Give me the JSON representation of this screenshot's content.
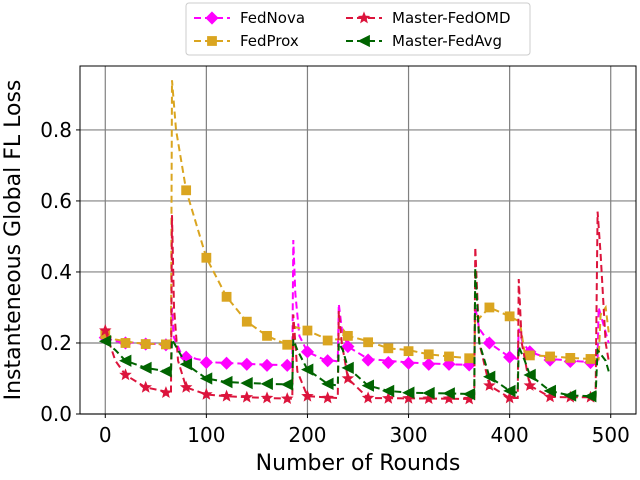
{
  "chart_data": {
    "type": "line",
    "title": "",
    "xlabel": "Number of Rounds",
    "ylabel": "Instanteneous Global FL Loss",
    "xlim": [
      -25,
      525
    ],
    "ylim": [
      0.0,
      0.98
    ],
    "xticks": [
      0,
      100,
      200,
      300,
      400,
      500
    ],
    "yticks": [
      0.0,
      0.2,
      0.4,
      0.6,
      0.8
    ],
    "xtick_labels": [
      "0",
      "100",
      "200",
      "300",
      "400",
      "500"
    ],
    "ytick_labels": [
      "0.0",
      "0.2",
      "0.4",
      "0.6",
      "0.8"
    ],
    "grid": true,
    "legend": {
      "placement": "top-center-outside",
      "columns": 2
    },
    "series": [
      {
        "name": "FedNova",
        "color": "#ff00ff",
        "marker": "diamond",
        "line": [
          [
            0,
            0.215
          ],
          [
            10,
            0.205
          ],
          [
            30,
            0.2
          ],
          [
            50,
            0.197
          ],
          [
            65,
            0.195
          ],
          [
            66,
            0.3
          ],
          [
            68,
            0.215
          ],
          [
            75,
            0.17
          ],
          [
            90,
            0.155
          ],
          [
            110,
            0.145
          ],
          [
            150,
            0.14
          ],
          [
            185,
            0.137
          ],
          [
            186,
            0.49
          ],
          [
            188,
            0.34
          ],
          [
            192,
            0.22
          ],
          [
            200,
            0.175
          ],
          [
            215,
            0.155
          ],
          [
            230,
            0.148
          ],
          [
            231,
            0.31
          ],
          [
            234,
            0.24
          ],
          [
            240,
            0.19
          ],
          [
            260,
            0.155
          ],
          [
            300,
            0.145
          ],
          [
            340,
            0.14
          ],
          [
            365,
            0.138
          ],
          [
            366,
            0.3
          ],
          [
            370,
            0.24
          ],
          [
            380,
            0.2
          ],
          [
            400,
            0.16
          ],
          [
            408,
            0.155
          ],
          [
            409,
            0.24
          ],
          [
            413,
            0.2
          ],
          [
            420,
            0.175
          ],
          [
            440,
            0.155
          ],
          [
            470,
            0.148
          ],
          [
            487,
            0.145
          ],
          [
            488,
            0.3
          ],
          [
            495,
            0.23
          ],
          [
            498,
            0.2
          ]
        ],
        "markers": [
          [
            0,
            0.215
          ],
          [
            20,
            0.2
          ],
          [
            40,
            0.197
          ],
          [
            60,
            0.195
          ],
          [
            80,
            0.16
          ],
          [
            100,
            0.145
          ],
          [
            120,
            0.143
          ],
          [
            140,
            0.14
          ],
          [
            160,
            0.137
          ],
          [
            180,
            0.137
          ],
          [
            200,
            0.175
          ],
          [
            220,
            0.15
          ],
          [
            240,
            0.19
          ],
          [
            260,
            0.152
          ],
          [
            280,
            0.145
          ],
          [
            300,
            0.143
          ],
          [
            320,
            0.14
          ],
          [
            340,
            0.14
          ],
          [
            360,
            0.138
          ],
          [
            380,
            0.2
          ],
          [
            400,
            0.16
          ],
          [
            420,
            0.175
          ],
          [
            440,
            0.152
          ],
          [
            460,
            0.148
          ],
          [
            480,
            0.145
          ]
        ]
      },
      {
        "name": "FedProx",
        "color": "#daa520",
        "marker": "square",
        "line": [
          [
            0,
            0.225
          ],
          [
            10,
            0.21
          ],
          [
            30,
            0.2
          ],
          [
            50,
            0.197
          ],
          [
            65,
            0.196
          ],
          [
            66,
            0.94
          ],
          [
            70,
            0.8
          ],
          [
            80,
            0.63
          ],
          [
            100,
            0.44
          ],
          [
            120,
            0.33
          ],
          [
            140,
            0.26
          ],
          [
            160,
            0.22
          ],
          [
            180,
            0.195
          ],
          [
            186,
            0.19
          ],
          [
            188,
            0.245
          ],
          [
            200,
            0.235
          ],
          [
            220,
            0.21
          ],
          [
            235,
            0.21
          ],
          [
            236,
            0.235
          ],
          [
            240,
            0.22
          ],
          [
            260,
            0.205
          ],
          [
            280,
            0.185
          ],
          [
            300,
            0.18
          ],
          [
            320,
            0.168
          ],
          [
            340,
            0.162
          ],
          [
            365,
            0.156
          ],
          [
            366,
            0.28
          ],
          [
            370,
            0.27
          ],
          [
            380,
            0.3
          ],
          [
            400,
            0.275
          ],
          [
            410,
            0.26
          ],
          [
            415,
            0.17
          ],
          [
            420,
            0.165
          ],
          [
            440,
            0.163
          ],
          [
            460,
            0.158
          ],
          [
            480,
            0.155
          ],
          [
            488,
            0.154
          ],
          [
            490,
            0.28
          ],
          [
            495,
            0.3
          ],
          [
            498,
            0.23
          ]
        ],
        "markers": [
          [
            0,
            0.225
          ],
          [
            20,
            0.2
          ],
          [
            40,
            0.197
          ],
          [
            60,
            0.196
          ],
          [
            80,
            0.63
          ],
          [
            100,
            0.44
          ],
          [
            120,
            0.33
          ],
          [
            140,
            0.26
          ],
          [
            160,
            0.22
          ],
          [
            180,
            0.195
          ],
          [
            200,
            0.235
          ],
          [
            220,
            0.207
          ],
          [
            240,
            0.22
          ],
          [
            260,
            0.202
          ],
          [
            280,
            0.185
          ],
          [
            300,
            0.177
          ],
          [
            320,
            0.168
          ],
          [
            340,
            0.162
          ],
          [
            360,
            0.157
          ],
          [
            380,
            0.3
          ],
          [
            400,
            0.275
          ],
          [
            420,
            0.165
          ],
          [
            440,
            0.162
          ],
          [
            460,
            0.158
          ],
          [
            480,
            0.155
          ]
        ]
      },
      {
        "name": "Master-FedOMD",
        "color": "#dc143c",
        "marker": "star",
        "line": [
          [
            0,
            0.235
          ],
          [
            10,
            0.15
          ],
          [
            20,
            0.11
          ],
          [
            40,
            0.075
          ],
          [
            65,
            0.06
          ],
          [
            66,
            0.56
          ],
          [
            68,
            0.3
          ],
          [
            72,
            0.15
          ],
          [
            80,
            0.075
          ],
          [
            100,
            0.055
          ],
          [
            120,
            0.05
          ],
          [
            160,
            0.045
          ],
          [
            185,
            0.043
          ],
          [
            186,
            0.28
          ],
          [
            190,
            0.12
          ],
          [
            200,
            0.05
          ],
          [
            230,
            0.045
          ],
          [
            231,
            0.29
          ],
          [
            234,
            0.2
          ],
          [
            240,
            0.1
          ],
          [
            260,
            0.045
          ],
          [
            300,
            0.044
          ],
          [
            340,
            0.043
          ],
          [
            365,
            0.042
          ],
          [
            366,
            0.47
          ],
          [
            370,
            0.2
          ],
          [
            380,
            0.08
          ],
          [
            400,
            0.045
          ],
          [
            408,
            0.045
          ],
          [
            409,
            0.38
          ],
          [
            412,
            0.2
          ],
          [
            420,
            0.08
          ],
          [
            440,
            0.048
          ],
          [
            460,
            0.047
          ],
          [
            485,
            0.047
          ],
          [
            487,
            0.57
          ],
          [
            490,
            0.45
          ],
          [
            495,
            0.2
          ],
          [
            498,
            0.15
          ]
        ],
        "markers": [
          [
            0,
            0.235
          ],
          [
            20,
            0.11
          ],
          [
            40,
            0.075
          ],
          [
            60,
            0.06
          ],
          [
            80,
            0.075
          ],
          [
            100,
            0.055
          ],
          [
            120,
            0.05
          ],
          [
            140,
            0.047
          ],
          [
            160,
            0.045
          ],
          [
            180,
            0.043
          ],
          [
            200,
            0.05
          ],
          [
            220,
            0.045
          ],
          [
            240,
            0.1
          ],
          [
            260,
            0.045
          ],
          [
            280,
            0.044
          ],
          [
            300,
            0.044
          ],
          [
            320,
            0.043
          ],
          [
            340,
            0.043
          ],
          [
            360,
            0.042
          ],
          [
            380,
            0.08
          ],
          [
            400,
            0.045
          ],
          [
            420,
            0.08
          ],
          [
            440,
            0.048
          ],
          [
            460,
            0.047
          ],
          [
            480,
            0.047
          ]
        ]
      },
      {
        "name": "Master-FedAvg",
        "color": "#006400",
        "marker": "triangle-left",
        "line": [
          [
            0,
            0.205
          ],
          [
            10,
            0.18
          ],
          [
            20,
            0.15
          ],
          [
            40,
            0.13
          ],
          [
            65,
            0.118
          ],
          [
            66,
            0.21
          ],
          [
            70,
            0.19
          ],
          [
            80,
            0.14
          ],
          [
            100,
            0.1
          ],
          [
            120,
            0.09
          ],
          [
            160,
            0.085
          ],
          [
            185,
            0.083
          ],
          [
            186,
            0.21
          ],
          [
            190,
            0.18
          ],
          [
            200,
            0.125
          ],
          [
            220,
            0.085
          ],
          [
            230,
            0.08
          ],
          [
            231,
            0.2
          ],
          [
            235,
            0.18
          ],
          [
            240,
            0.13
          ],
          [
            260,
            0.08
          ],
          [
            280,
            0.065
          ],
          [
            300,
            0.06
          ],
          [
            340,
            0.058
          ],
          [
            365,
            0.056
          ],
          [
            366,
            0.41
          ],
          [
            370,
            0.2
          ],
          [
            380,
            0.105
          ],
          [
            400,
            0.065
          ],
          [
            408,
            0.06
          ],
          [
            409,
            0.19
          ],
          [
            415,
            0.15
          ],
          [
            420,
            0.11
          ],
          [
            440,
            0.065
          ],
          [
            460,
            0.052
          ],
          [
            485,
            0.05
          ],
          [
            487,
            0.18
          ],
          [
            495,
            0.15
          ],
          [
            498,
            0.12
          ]
        ],
        "markers": [
          [
            0,
            0.205
          ],
          [
            20,
            0.15
          ],
          [
            40,
            0.13
          ],
          [
            60,
            0.12
          ],
          [
            80,
            0.14
          ],
          [
            100,
            0.1
          ],
          [
            120,
            0.09
          ],
          [
            140,
            0.087
          ],
          [
            160,
            0.085
          ],
          [
            180,
            0.083
          ],
          [
            200,
            0.125
          ],
          [
            220,
            0.085
          ],
          [
            240,
            0.13
          ],
          [
            260,
            0.08
          ],
          [
            280,
            0.065
          ],
          [
            300,
            0.06
          ],
          [
            320,
            0.059
          ],
          [
            340,
            0.058
          ],
          [
            360,
            0.056
          ],
          [
            380,
            0.105
          ],
          [
            400,
            0.065
          ],
          [
            420,
            0.11
          ],
          [
            440,
            0.065
          ],
          [
            460,
            0.052
          ],
          [
            480,
            0.05
          ]
        ]
      }
    ]
  }
}
